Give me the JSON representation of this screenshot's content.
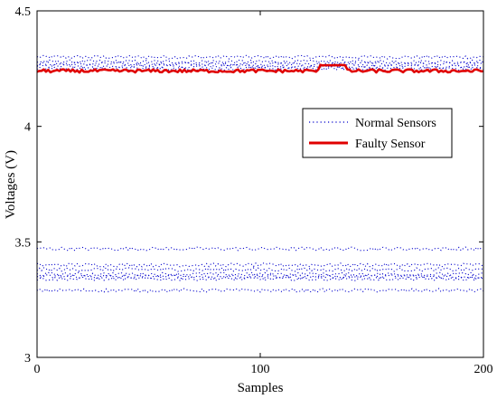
{
  "chart_data": {
    "type": "line",
    "xlabel": "Samples",
    "ylabel": "Voltages (V)",
    "xlim": [
      0,
      200
    ],
    "ylim": [
      3,
      4.5
    ],
    "xticks": [
      0,
      100,
      200
    ],
    "yticks": [
      3,
      3.5,
      4,
      4.5
    ],
    "xtick_labels": [
      "0",
      "100",
      "200"
    ],
    "ytick_labels": [
      "3",
      "3.5",
      "4",
      "4.5"
    ],
    "grid": false,
    "legend_position": "right",
    "legend": [
      {
        "label": "Normal Sensors",
        "style": "dotted",
        "color": "#0000cc"
      },
      {
        "label": "Faulty Sensor",
        "style": "solid",
        "color": "#e00000"
      }
    ],
    "normal_sensor_levels": [
      4.3,
      4.28,
      4.27,
      4.26,
      4.25,
      3.47,
      3.4,
      3.38,
      3.36,
      3.35,
      3.34,
      3.29
    ],
    "faulty_sensor": {
      "baseline": 4.24,
      "step_start": 127,
      "step_end": 138,
      "step_value": 4.265
    },
    "colors": {
      "normal": "#0000cc",
      "faulty": "#e00000",
      "axis": "#000000"
    }
  }
}
